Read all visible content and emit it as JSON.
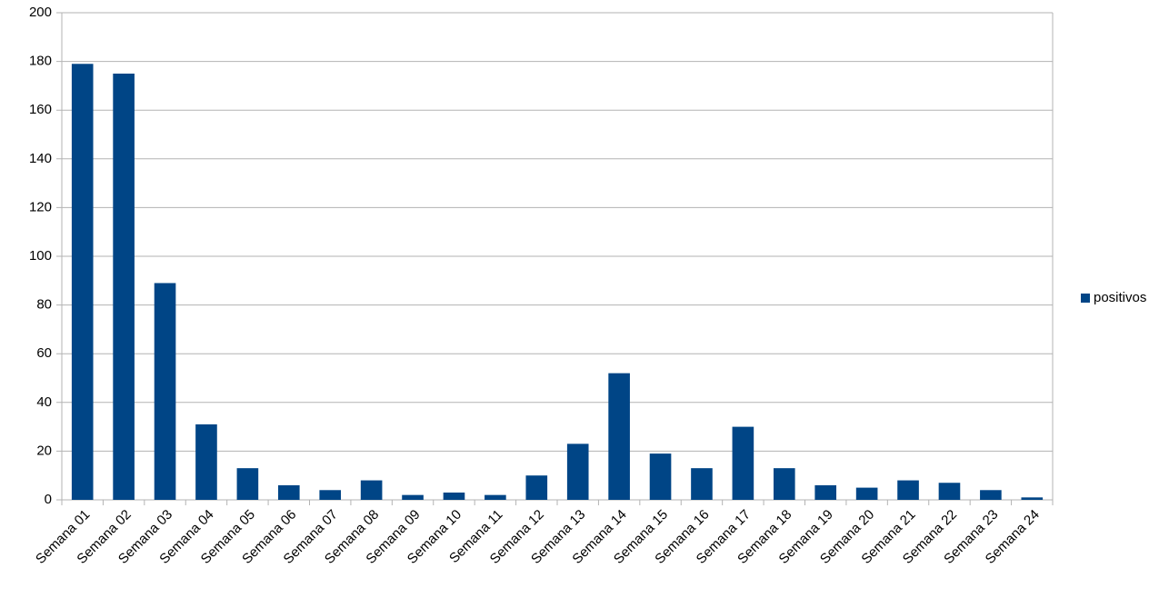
{
  "chart_data": {
    "type": "bar",
    "categories": [
      "Semana 01",
      "Semana 02",
      "Semana 03",
      "Semana 04",
      "Semana 05",
      "Semana 06",
      "Semana 07",
      "Semana 08",
      "Semana 09",
      "Semana 10",
      "Semana 11",
      "Semana 12",
      "Semana 13",
      "Semana 14",
      "Semana 15",
      "Semana 16",
      "Semana 17",
      "Semana 18",
      "Semana 19",
      "Semana 20",
      "Semana 21",
      "Semana 22",
      "Semana 23",
      "Semana 24"
    ],
    "series": [
      {
        "name": "positivos",
        "color": "#004586",
        "values": [
          179,
          175,
          89,
          31,
          13,
          6,
          4,
          8,
          2,
          3,
          2,
          10,
          23,
          52,
          19,
          13,
          30,
          13,
          6,
          5,
          8,
          7,
          4,
          1
        ]
      }
    ],
    "ylim": [
      0,
      200
    ],
    "yticks": [
      0,
      20,
      40,
      60,
      80,
      100,
      120,
      140,
      160,
      180,
      200
    ],
    "grid": true,
    "legend": "right"
  }
}
